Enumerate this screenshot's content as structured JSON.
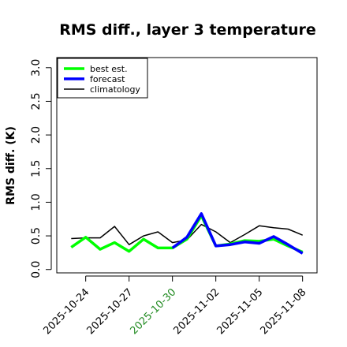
{
  "chart_data": {
    "type": "line",
    "title": "RMS diff., layer 3 temperature",
    "ylabel": "RMS diff. (K)",
    "xlabel": "",
    "x_unit": "date",
    "ylim": [
      -0.05,
      3.15
    ],
    "xlim": [
      "2025-10-22",
      "2025-11-09"
    ],
    "y_ticks": [
      0.0,
      0.5,
      1.0,
      1.5,
      2.0,
      2.5,
      3.0
    ],
    "y_tick_labels": [
      "0.0",
      "0.5",
      "1.0",
      "1.5",
      "2.0",
      "2.5",
      "3.0"
    ],
    "x_ticks": [
      "2025-10-24",
      "2025-10-27",
      "2025-10-30",
      "2025-11-02",
      "2025-11-05",
      "2025-11-08"
    ],
    "x_tick_labels": [
      "2025-10-24",
      "2025-10-27",
      "2025-10-30",
      "2025-11-02",
      "2025-11-05",
      "2025-11-08"
    ],
    "x_tick_colors": [
      "#000000",
      "#000000",
      "#228B22",
      "#000000",
      "#000000",
      "#000000"
    ],
    "grid": false,
    "legend_position": "top-left",
    "series": [
      {
        "name": "best est.",
        "color": "#00ff00",
        "x": [
          "2025-10-23",
          "2025-10-24",
          "2025-10-25",
          "2025-10-26",
          "2025-10-27",
          "2025-10-28",
          "2025-10-29",
          "2025-10-30",
          "2025-10-31",
          "2025-11-01",
          "2025-11-02",
          "2025-11-03",
          "2025-11-04",
          "2025-11-05",
          "2025-11-06",
          "2025-11-07",
          "2025-11-08"
        ],
        "y": [
          0.33,
          0.48,
          0.3,
          0.4,
          0.27,
          0.45,
          0.32,
          0.32,
          0.45,
          0.8,
          0.35,
          0.38,
          0.43,
          0.42,
          0.45,
          0.35,
          0.26
        ]
      },
      {
        "name": "forecast",
        "color": "#0000ff",
        "x": [
          "2025-10-30",
          "2025-10-31",
          "2025-11-01",
          "2025-11-02",
          "2025-11-03",
          "2025-11-04",
          "2025-11-05",
          "2025-11-06",
          "2025-11-07",
          "2025-11-08"
        ],
        "y": [
          0.32,
          0.48,
          0.83,
          0.35,
          0.37,
          0.41,
          0.39,
          0.49,
          0.37,
          0.24
        ]
      },
      {
        "name": "climatology",
        "color": "#000000",
        "x": [
          "2025-10-23",
          "2025-10-24",
          "2025-10-25",
          "2025-10-26",
          "2025-10-27",
          "2025-10-28",
          "2025-10-29",
          "2025-10-30",
          "2025-10-31",
          "2025-11-01",
          "2025-11-02",
          "2025-11-03",
          "2025-11-04",
          "2025-11-05",
          "2025-11-06",
          "2025-11-07",
          "2025-11-08"
        ],
        "y": [
          0.46,
          0.47,
          0.47,
          0.64,
          0.37,
          0.5,
          0.56,
          0.4,
          0.44,
          0.67,
          0.56,
          0.4,
          0.52,
          0.65,
          0.62,
          0.6,
          0.51
        ]
      }
    ]
  }
}
